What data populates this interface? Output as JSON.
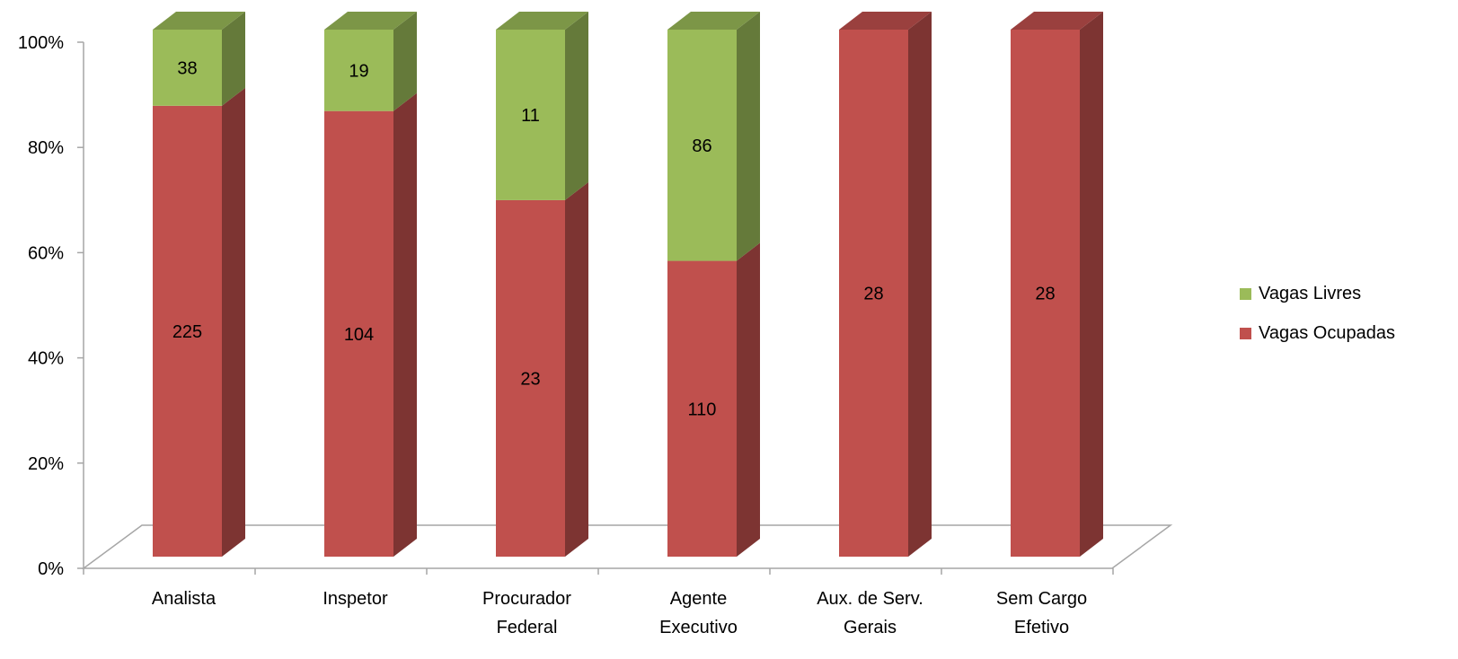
{
  "chart_data": {
    "type": "bar",
    "stacked": "percent",
    "three_d": true,
    "title": "",
    "xlabel": "",
    "ylabel": "",
    "ylim": [
      0,
      100
    ],
    "y_ticks": [
      "0%",
      "20%",
      "40%",
      "60%",
      "80%",
      "100%"
    ],
    "y_tick_values": [
      0,
      20,
      40,
      60,
      80,
      100
    ],
    "grid": false,
    "legend_position": "right",
    "categories": [
      [
        "Analista"
      ],
      [
        "Inspetor"
      ],
      [
        "Procurador",
        "Federal"
      ],
      [
        "Agente",
        "Executivo"
      ],
      [
        "Aux. de Serv.",
        "Gerais"
      ],
      [
        "Sem Cargo",
        "Efetivo"
      ]
    ],
    "series": [
      {
        "name": "Vagas Ocupadas",
        "values": [
          225,
          104,
          23,
          110,
          28,
          28
        ],
        "labels": [
          "225",
          "104",
          "23",
          "110",
          "28",
          "28"
        ],
        "color": "#C0504D"
      },
      {
        "name": "Vagas Livres",
        "values": [
          38,
          19,
          11,
          86,
          0,
          0
        ],
        "labels": [
          "38",
          "19",
          "11",
          "86",
          "",
          ""
        ],
        "color": "#9BBB59"
      }
    ]
  },
  "legend": {
    "items": [
      {
        "label": "Vagas Livres",
        "color": "#9BBB59"
      },
      {
        "label": "Vagas Ocupadas",
        "color": "#C0504D"
      }
    ]
  }
}
